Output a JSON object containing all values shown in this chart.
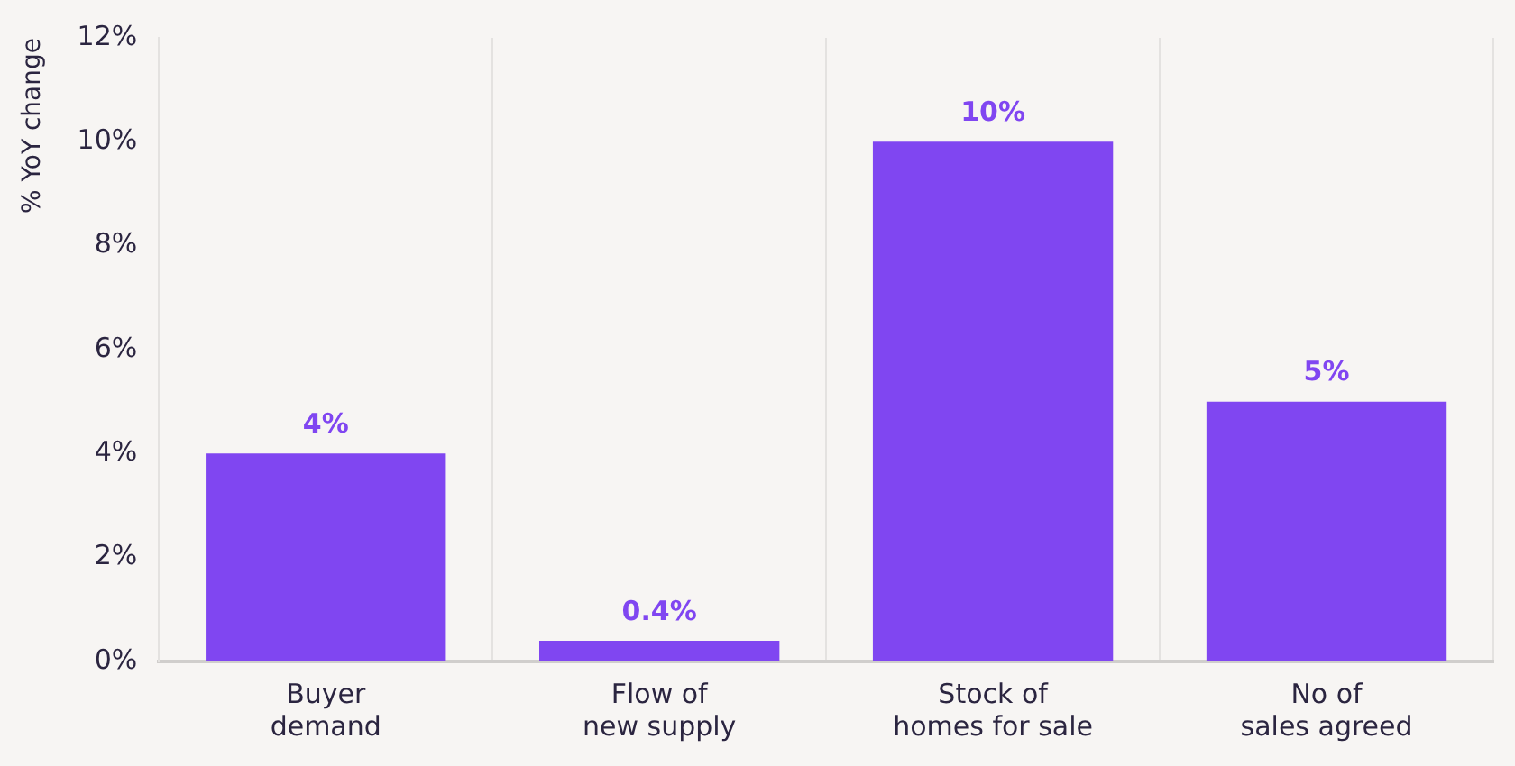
{
  "chart_data": {
    "type": "bar",
    "ylabel": "% YoY change",
    "categories": [
      "Buyer demand",
      "Flow of new supply",
      "Stock of homes for sale",
      "No of sales agreed"
    ],
    "values": [
      4,
      0.4,
      10,
      5
    ],
    "color": "#8046f1",
    "value_labels": [
      "4%",
      "0.4%",
      "10%",
      "5%"
    ],
    "ylim": [
      0,
      12
    ],
    "yticks": [
      {
        "value": 0,
        "label": "0%"
      },
      {
        "value": 2,
        "label": "2%"
      },
      {
        "value": 4,
        "label": "4%"
      },
      {
        "value": 6,
        "label": "6%"
      },
      {
        "value": 8,
        "label": "8%"
      },
      {
        "value": 10,
        "label": "10%"
      },
      {
        "value": 12,
        "label": "12%"
      }
    ],
    "grid": "x",
    "legend": false
  }
}
